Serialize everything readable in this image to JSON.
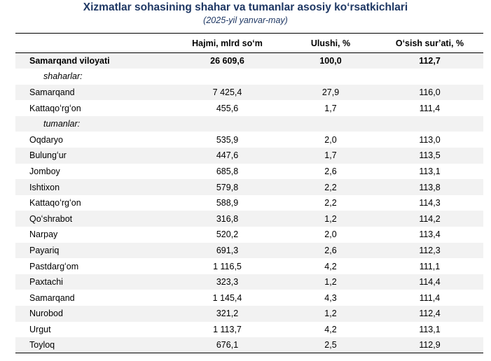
{
  "title": "Xizmatlar sohasining shahar va tumanlar asosiy koʻrsatkichlari",
  "subtitle": "(2025-yil yanvar-may)",
  "headers": [
    "",
    "Hajmi, mlrd soʻm",
    "Ulushi, %",
    "Oʻsish surʼati, %"
  ],
  "total": {
    "name": "Samarqand viloyati",
    "volume": "26 609,6",
    "share": "100,0",
    "growth": "112,7"
  },
  "cities_label": "shaharlar:",
  "cities": [
    {
      "name": "Samarqand",
      "volume": "7 425,4",
      "share": "27,9",
      "growth": "116,0"
    },
    {
      "name": "Kattaqoʻrgʻon",
      "volume": "455,6",
      "share": "1,7",
      "growth": "111,4"
    }
  ],
  "districts_label": "tumanlar:",
  "districts": [
    {
      "name": "Oqdaryo",
      "volume": "535,9",
      "share": "2,0",
      "growth": "113,0"
    },
    {
      "name": "Bulungʻur",
      "volume": "447,6",
      "share": "1,7",
      "growth": "113,5"
    },
    {
      "name": "Jomboy",
      "volume": "685,8",
      "share": "2,6",
      "growth": "113,1"
    },
    {
      "name": "Ishtixon",
      "volume": "579,8",
      "share": "2,2",
      "growth": "113,8"
    },
    {
      "name": "Kattaqoʻrgʻon",
      "volume": "588,9",
      "share": "2,2",
      "growth": "114,3"
    },
    {
      "name": "Qoʻshrabot",
      "volume": "316,8",
      "share": "1,2",
      "growth": "114,2"
    },
    {
      "name": "Narpay",
      "volume": "520,2",
      "share": "2,0",
      "growth": "113,4"
    },
    {
      "name": "Payariq",
      "volume": "691,3",
      "share": "2,6",
      "growth": "112,3"
    },
    {
      "name": "Pastdargʻom",
      "volume": "1 116,5",
      "share": "4,2",
      "growth": "111,1"
    },
    {
      "name": "Paxtachi",
      "volume": "323,3",
      "share": "1,2",
      "growth": "114,4"
    },
    {
      "name": "Samarqand",
      "volume": "1 145,4",
      "share": "4,3",
      "growth": "111,4"
    },
    {
      "name": "Nurobod",
      "volume": "321,2",
      "share": "1,2",
      "growth": "112,4"
    },
    {
      "name": "Urgut",
      "volume": "1 113,7",
      "share": "4,2",
      "growth": "113,1"
    },
    {
      "name": "Toyloq",
      "volume": "676,1",
      "share": "2,5",
      "growth": "112,9"
    }
  ]
}
